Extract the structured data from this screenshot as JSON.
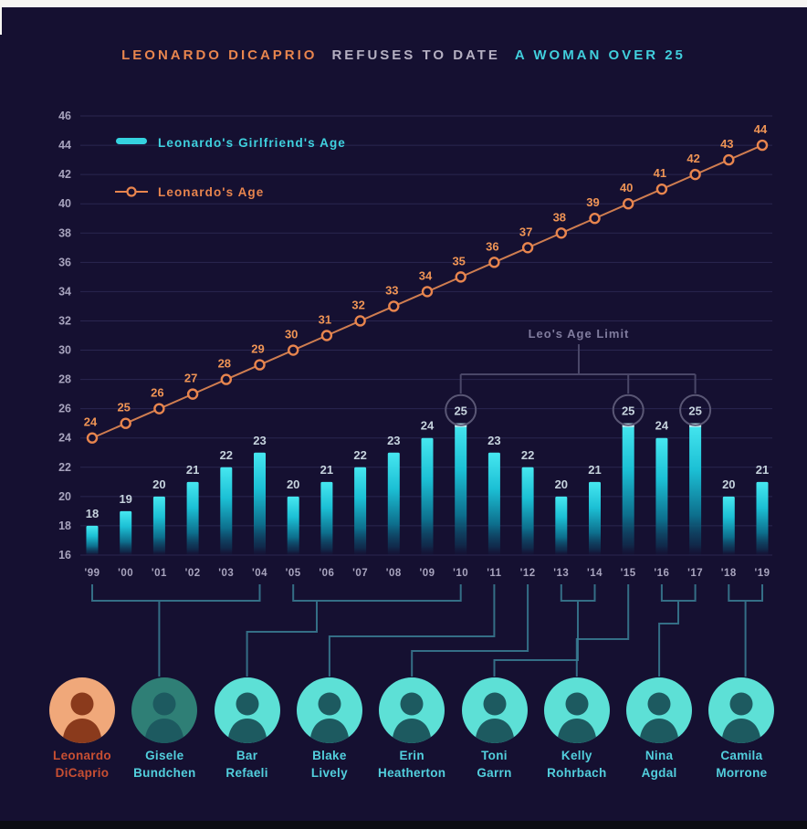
{
  "title": {
    "part1": "LEONARDO DICAPRIO",
    "part2": "REFUSES TO DATE",
    "part3": "A WOMAN OVER 25"
  },
  "legend": {
    "girlfriend_label": "Leonardo's Girlfriend's Age",
    "leo_label": "Leonardo's Age"
  },
  "chart_data": {
    "type": "bar",
    "categories": [
      "'99",
      "'00",
      "'01",
      "'02",
      "'03",
      "'04",
      "'05",
      "'06",
      "'07",
      "'08",
      "'09",
      "'10",
      "'11",
      "'12",
      "'13",
      "'14",
      "'15",
      "'16",
      "'17",
      "'18",
      "'19"
    ],
    "series": [
      {
        "name": "Leonardo's Girlfriend's Age",
        "type": "bar",
        "values": [
          18,
          19,
          20,
          21,
          22,
          23,
          20,
          21,
          22,
          23,
          24,
          25,
          23,
          22,
          20,
          21,
          25,
          24,
          25,
          20,
          21
        ]
      },
      {
        "name": "Leonardo's Age",
        "type": "line",
        "values": [
          24,
          25,
          26,
          27,
          28,
          29,
          30,
          31,
          32,
          33,
          34,
          35,
          36,
          37,
          38,
          39,
          40,
          41,
          42,
          43,
          44
        ]
      }
    ],
    "y_ticks": [
      16,
      18,
      20,
      22,
      24,
      26,
      28,
      30,
      32,
      34,
      36,
      38,
      40,
      42,
      44,
      46
    ],
    "ylim": [
      16,
      46
    ],
    "grid": true,
    "legend_position": "top-left-inside",
    "annotation": {
      "label": "Leo's Age Limit",
      "circled_value": 25,
      "circled_year_indices": [
        11,
        16,
        18
      ]
    }
  },
  "colors": {
    "background": "#151031",
    "grid": "#2a2650",
    "axis_text": "#a7a3bd",
    "bar_top": "#46e7f0",
    "bar_mid": "#1cc0d5",
    "bar_deep": "#0d5a78",
    "bar_label": "#c6d3dd",
    "line": "#cf7d50",
    "line_marker": "#e8854e",
    "line_label": "#ef9455",
    "annotation_text": "#807c9e",
    "annotation_line": "#4a4768",
    "circle_stroke": "#5a5775",
    "connector": "#3a7f95",
    "name_cyan": "#52cfdd",
    "name_orange": "#c84f32"
  },
  "people": [
    {
      "name": "Leonardo DiCaprio",
      "highlight": true
    },
    {
      "name": "Gisele Bundchen",
      "highlight": false
    },
    {
      "name": "Bar Refaeli",
      "highlight": false
    },
    {
      "name": "Blake Lively",
      "highlight": false
    },
    {
      "name": "Erin Heatherton",
      "highlight": false
    },
    {
      "name": "Toni Garrn",
      "highlight": false
    },
    {
      "name": "Kelly Rohrbach",
      "highlight": false
    },
    {
      "name": "Nina Agdal",
      "highlight": false
    },
    {
      "name": "Camila Morrone",
      "highlight": false
    }
  ],
  "connector_map": [
    {
      "person_index": 1,
      "year_indices": [
        0,
        1,
        2,
        3,
        4,
        5
      ]
    },
    {
      "person_index": 2,
      "year_indices": [
        6,
        7,
        8,
        9,
        10,
        11
      ]
    },
    {
      "person_index": 3,
      "year_indices": [
        12
      ]
    },
    {
      "person_index": 4,
      "year_indices": [
        13
      ]
    },
    {
      "person_index": 5,
      "year_indices": [
        14,
        15
      ]
    },
    {
      "person_index": 6,
      "year_indices": [
        16
      ]
    },
    {
      "person_index": 7,
      "year_indices": [
        17,
        18
      ]
    },
    {
      "person_index": 8,
      "year_indices": [
        19,
        20
      ]
    }
  ]
}
